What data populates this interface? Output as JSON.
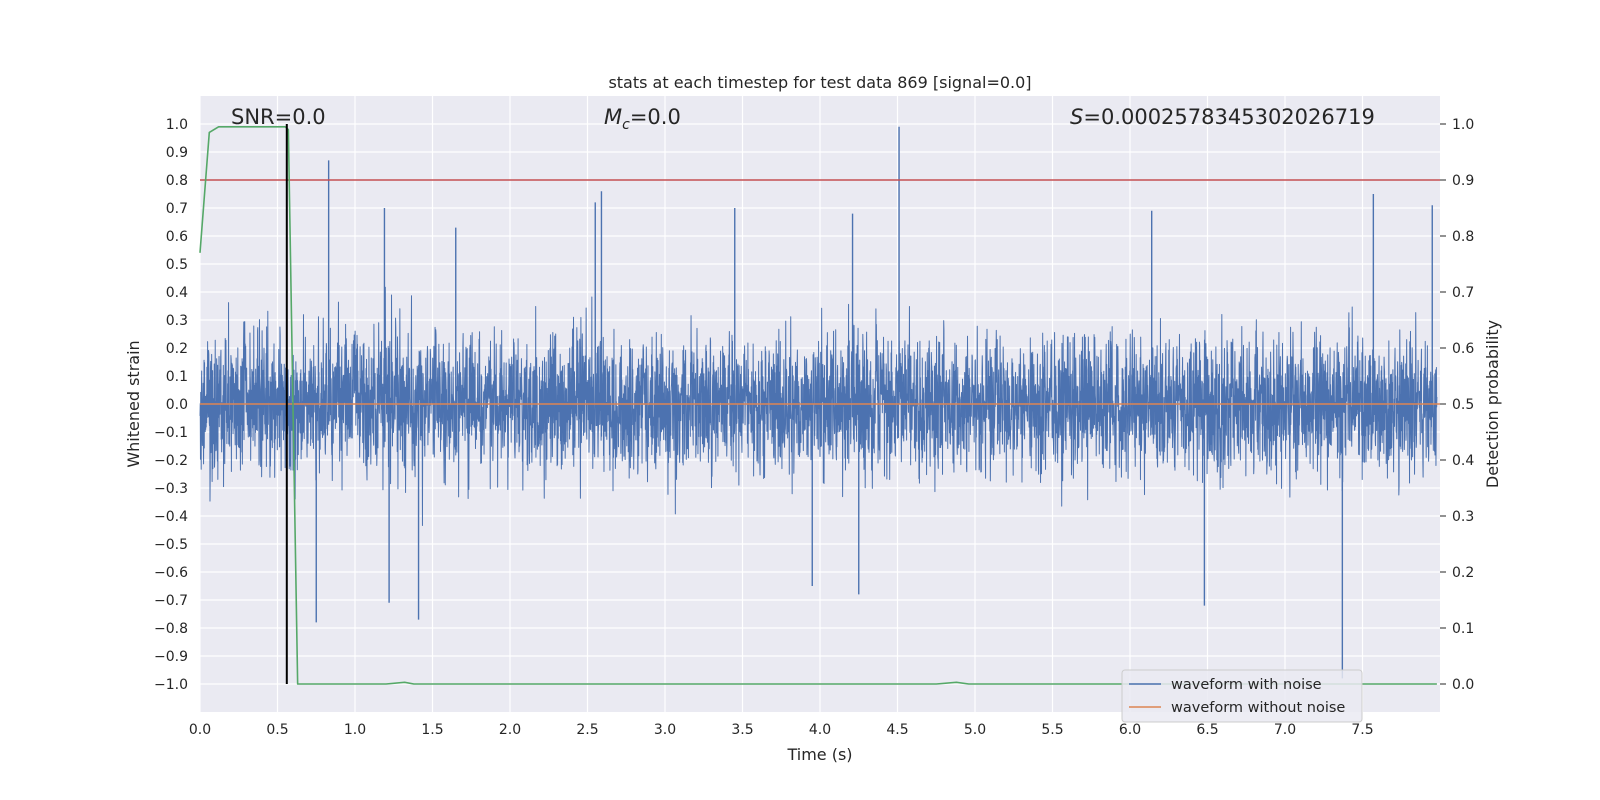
{
  "chart_data": {
    "type": "line",
    "title": "stats at each timestep for test data 869 [signal=0.0]",
    "xlabel": "Time (s)",
    "ylabel": "Whitened strain",
    "y2label": "Detection probability",
    "xlim": [
      0.0,
      8.0
    ],
    "ylim": [
      -1.1,
      1.1
    ],
    "y2lim": [
      -0.05,
      1.05
    ],
    "xticks": [
      "0.0",
      "0.5",
      "1.0",
      "1.5",
      "2.0",
      "2.5",
      "3.0",
      "3.5",
      "4.0",
      "4.5",
      "5.0",
      "5.5",
      "6.0",
      "6.5",
      "7.0",
      "7.5"
    ],
    "yticks": [
      "1.0",
      "0.9",
      "0.8",
      "0.7",
      "0.6",
      "0.5",
      "0.4",
      "0.3",
      "0.2",
      "0.1",
      "0.0",
      "−0.1",
      "−0.2",
      "−0.3",
      "−0.4",
      "−0.5",
      "−0.6",
      "−0.7",
      "−0.8",
      "−0.9",
      "−1.0"
    ],
    "y2ticks": [
      "1.0",
      "0.9",
      "0.8",
      "0.7",
      "0.6",
      "0.5",
      "0.4",
      "0.3",
      "0.2",
      "0.1",
      "0.0"
    ],
    "grid": true,
    "annotations": {
      "snr": "SNR=0.0",
      "mc_symbol": "M",
      "mc_sub": "c",
      "mc_value": "=0.0",
      "s_symbol": "S",
      "s_value": "=0.0002578345302026719"
    },
    "legend": {
      "position": "lower-right",
      "entries": [
        {
          "label": "waveform with noise",
          "color": "#4c72b0"
        },
        {
          "label": "waveform without noise",
          "color": "#dd8452"
        }
      ]
    },
    "colors": {
      "noise": "#4c72b0",
      "clean": "#dd8452",
      "probability": "#55a868",
      "threshold": "#c44e52",
      "marker": "#000000",
      "background": "#eaeaf2"
    },
    "series": [
      {
        "name": "waveform with noise",
        "style": "dense noise around 0 with amplitude about ±0.4",
        "envelope_typical": [
          -0.45,
          0.45
        ],
        "spikes": [
          {
            "x": 0.83,
            "y": 0.87
          },
          {
            "x": 1.19,
            "y": 0.7
          },
          {
            "x": 1.65,
            "y": 0.63
          },
          {
            "x": 2.55,
            "y": 0.72
          },
          {
            "x": 2.59,
            "y": 0.76
          },
          {
            "x": 3.45,
            "y": 0.7
          },
          {
            "x": 4.21,
            "y": 0.68
          },
          {
            "x": 4.51,
            "y": 0.99
          },
          {
            "x": 6.14,
            "y": 0.69
          },
          {
            "x": 7.57,
            "y": 0.75
          },
          {
            "x": 7.95,
            "y": 0.71
          },
          {
            "x": 0.75,
            "y": -0.78
          },
          {
            "x": 1.41,
            "y": -0.77
          },
          {
            "x": 1.22,
            "y": -0.71
          },
          {
            "x": 3.95,
            "y": -0.65
          },
          {
            "x": 4.25,
            "y": -0.68
          },
          {
            "x": 6.48,
            "y": -0.72
          },
          {
            "x": 7.37,
            "y": -0.98
          }
        ]
      },
      {
        "name": "waveform without noise",
        "x": [
          0.0,
          8.0
        ],
        "y": [
          0.0,
          0.0
        ]
      },
      {
        "name": "detection probability",
        "axis": "right",
        "x": [
          0.0,
          0.06,
          0.12,
          0.3,
          0.5,
          0.55,
          0.57,
          0.63,
          1.0,
          1.2,
          1.32,
          1.38,
          1.6,
          2.5,
          3.5,
          4.5,
          4.75,
          4.88,
          4.96,
          5.1,
          6.0,
          7.0,
          7.98
        ],
        "y": [
          0.77,
          0.985,
          0.995,
          0.995,
          0.995,
          0.995,
          0.99,
          0.0,
          0.0,
          0.0,
          0.003,
          0.0,
          0.0,
          0.0,
          0.0,
          0.0,
          0.0,
          0.003,
          0.0,
          0.0,
          0.0,
          0.0,
          0.0
        ]
      },
      {
        "name": "threshold",
        "axis": "right",
        "x": [
          0.0,
          8.0
        ],
        "y": [
          0.9,
          0.9
        ]
      },
      {
        "name": "marker",
        "type": "vline",
        "x": 0.56,
        "ymin": -1.0,
        "ymax": 1.0
      }
    ]
  }
}
